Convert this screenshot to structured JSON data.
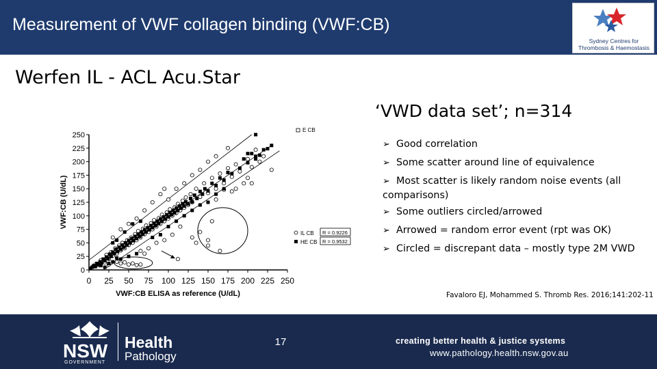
{
  "header": {
    "title": "Measurement of VWF collagen binding (VWF:CB)"
  },
  "logo": {
    "line1": "Sydney Centres for",
    "line2": "Thrombosis & Haemostasis"
  },
  "subtitle": "Werfen IL - ACL Acu.Star",
  "dataset_title": "‘VWD data set’; n=314",
  "bullets": [
    "Good correlation",
    "Some scatter around line of equivalence",
    "Most scatter is likely random noise events (all comparisons)",
    "Some outliers circled/arrowed",
    "Arrowed = random error event (rpt was OK)",
    "Circled = discrepant data – mostly type 2M VWD"
  ],
  "citation": "Favaloro EJ, Mohammed S. Thromb Res. 2016;141:202-11",
  "footer": {
    "org_word": "NSW",
    "org_sub": "GOVERNMENT",
    "health": "Health",
    "pathology": "Pathology",
    "page_number": "17",
    "tagline": "creating better health & justice systems",
    "url": "www.pathology.health.nsw.gov.au"
  },
  "colors": {
    "header": "#1f3b6e",
    "footer": "#1a2a4e",
    "ink": "#000000"
  },
  "icons": [
    "arrow-bullet-icon",
    "waratah-logo-icon",
    "star-logo-icon"
  ],
  "chart_data": {
    "type": "scatter",
    "xlabel": "VWF:CB ELISA as reference (U/dL)",
    "ylabel": "VWF:CB (U/dL)",
    "xlim": [
      0,
      250
    ],
    "ylim": [
      0,
      250
    ],
    "xticks": [
      0,
      25,
      50,
      75,
      100,
      125,
      150,
      175,
      200,
      225,
      250
    ],
    "yticks": [
      0,
      25,
      50,
      75,
      100,
      125,
      150,
      175,
      200,
      225,
      250
    ],
    "grid": false,
    "legend_top": "E CB",
    "legend_position": "right",
    "series": [
      {
        "name": "IL CB",
        "marker": "open-circle",
        "r_label": "R = 0.9226",
        "points": [
          [
            5,
            6
          ],
          [
            8,
            10
          ],
          [
            12,
            9
          ],
          [
            15,
            18
          ],
          [
            20,
            14
          ],
          [
            22,
            28
          ],
          [
            25,
            20
          ],
          [
            28,
            33
          ],
          [
            30,
            26
          ],
          [
            33,
            40
          ],
          [
            35,
            30
          ],
          [
            38,
            45
          ],
          [
            40,
            36
          ],
          [
            42,
            50
          ],
          [
            45,
            40
          ],
          [
            48,
            55
          ],
          [
            50,
            46
          ],
          [
            53,
            60
          ],
          [
            55,
            50
          ],
          [
            58,
            66
          ],
          [
            60,
            55
          ],
          [
            62,
            72
          ],
          [
            65,
            60
          ],
          [
            68,
            76
          ],
          [
            70,
            66
          ],
          [
            72,
            82
          ],
          [
            75,
            70
          ],
          [
            78,
            86
          ],
          [
            80,
            75
          ],
          [
            82,
            92
          ],
          [
            85,
            80
          ],
          [
            88,
            96
          ],
          [
            90,
            85
          ],
          [
            92,
            102
          ],
          [
            95,
            90
          ],
          [
            98,
            106
          ],
          [
            100,
            95
          ],
          [
            102,
            112
          ],
          [
            105,
            100
          ],
          [
            108,
            116
          ],
          [
            110,
            105
          ],
          [
            112,
            122
          ],
          [
            115,
            110
          ],
          [
            118,
            128
          ],
          [
            120,
            115
          ],
          [
            122,
            134
          ],
          [
            125,
            120
          ],
          [
            128,
            140
          ],
          [
            130,
            125
          ],
          [
            135,
            150
          ],
          [
            140,
            135
          ],
          [
            145,
            160
          ],
          [
            150,
            142
          ],
          [
            155,
            170
          ],
          [
            160,
            150
          ],
          [
            165,
            178
          ],
          [
            170,
            160
          ],
          [
            175,
            188
          ],
          [
            180,
            172
          ],
          [
            185,
            195
          ],
          [
            190,
            182
          ],
          [
            200,
            205
          ],
          [
            205,
            190
          ],
          [
            210,
            222
          ],
          [
            215,
            200
          ],
          [
            220,
            210
          ],
          [
            100,
            130
          ],
          [
            110,
            150
          ],
          [
            120,
            160
          ],
          [
            130,
            175
          ],
          [
            140,
            185
          ],
          [
            150,
            200
          ],
          [
            160,
            210
          ],
          [
            175,
            225
          ],
          [
            60,
            95
          ],
          [
            70,
            110
          ],
          [
            80,
            125
          ],
          [
            90,
            140
          ],
          [
            95,
            150
          ],
          [
            30,
            60
          ],
          [
            40,
            75
          ],
          [
            50,
            85
          ],
          [
            25,
            10
          ],
          [
            35,
            15
          ],
          [
            40,
            12
          ],
          [
            45,
            14
          ],
          [
            50,
            10
          ],
          [
            55,
            12
          ],
          [
            60,
            9
          ],
          [
            65,
            10
          ],
          [
            130,
            60
          ],
          [
            135,
            50
          ],
          [
            150,
            55
          ],
          [
            165,
            35
          ],
          [
            115,
            80
          ],
          [
            140,
            70
          ],
          [
            155,
            90
          ],
          [
            105,
            65
          ],
          [
            95,
            55
          ],
          [
            85,
            50
          ],
          [
            75,
            40
          ],
          [
            70,
            30
          ],
          [
            65,
            35
          ],
          [
            150,
            45
          ],
          [
            112,
            20
          ],
          [
            185,
            150
          ],
          [
            195,
            160
          ],
          [
            200,
            170
          ],
          [
            205,
            160
          ],
          [
            230,
            185
          ],
          [
            180,
            145
          ],
          [
            170,
            148
          ],
          [
            160,
            130
          ]
        ]
      },
      {
        "name": "HE CB",
        "marker": "filled-square",
        "r_label": "R = 0.9532",
        "points": [
          [
            2,
            3
          ],
          [
            4,
            5
          ],
          [
            6,
            8
          ],
          [
            8,
            6
          ],
          [
            10,
            12
          ],
          [
            12,
            10
          ],
          [
            14,
            15
          ],
          [
            16,
            13
          ],
          [
            18,
            20
          ],
          [
            20,
            17
          ],
          [
            22,
            24
          ],
          [
            24,
            21
          ],
          [
            26,
            29
          ],
          [
            28,
            25
          ],
          [
            30,
            33
          ],
          [
            32,
            30
          ],
          [
            34,
            38
          ],
          [
            36,
            34
          ],
          [
            38,
            42
          ],
          [
            40,
            38
          ],
          [
            42,
            46
          ],
          [
            44,
            42
          ],
          [
            46,
            50
          ],
          [
            48,
            46
          ],
          [
            50,
            54
          ],
          [
            52,
            50
          ],
          [
            54,
            58
          ],
          [
            56,
            54
          ],
          [
            58,
            62
          ],
          [
            60,
            58
          ],
          [
            62,
            66
          ],
          [
            64,
            62
          ],
          [
            66,
            70
          ],
          [
            68,
            66
          ],
          [
            70,
            74
          ],
          [
            72,
            70
          ],
          [
            74,
            78
          ],
          [
            76,
            74
          ],
          [
            78,
            82
          ],
          [
            80,
            78
          ],
          [
            82,
            86
          ],
          [
            84,
            82
          ],
          [
            86,
            90
          ],
          [
            88,
            86
          ],
          [
            90,
            94
          ],
          [
            92,
            90
          ],
          [
            94,
            98
          ],
          [
            96,
            94
          ],
          [
            98,
            102
          ],
          [
            100,
            98
          ],
          [
            102,
            106
          ],
          [
            104,
            102
          ],
          [
            106,
            110
          ],
          [
            108,
            106
          ],
          [
            110,
            114
          ],
          [
            112,
            110
          ],
          [
            114,
            118
          ],
          [
            116,
            114
          ],
          [
            118,
            122
          ],
          [
            120,
            118
          ],
          [
            122,
            126
          ],
          [
            125,
            122
          ],
          [
            128,
            132
          ],
          [
            130,
            126
          ],
          [
            133,
            138
          ],
          [
            136,
            132
          ],
          [
            140,
            145
          ],
          [
            143,
            140
          ],
          [
            146,
            150
          ],
          [
            150,
            146
          ],
          [
            155,
            160
          ],
          [
            160,
            156
          ],
          [
            165,
            170
          ],
          [
            170,
            166
          ],
          [
            175,
            180
          ],
          [
            180,
            178
          ],
          [
            190,
            188
          ],
          [
            200,
            198
          ],
          [
            210,
            210
          ],
          [
            215,
            212
          ],
          [
            220,
            222
          ],
          [
            225,
            224
          ],
          [
            230,
            230
          ],
          [
            210,
            205
          ],
          [
            200,
            215
          ],
          [
            195,
            205
          ],
          [
            45,
            70
          ],
          [
            55,
            85
          ],
          [
            65,
            90
          ],
          [
            35,
            55
          ],
          [
            30,
            50
          ],
          [
            40,
            20
          ],
          [
            30,
            15
          ],
          [
            50,
            25
          ],
          [
            60,
            30
          ],
          [
            80,
            60
          ],
          [
            90,
            65
          ],
          [
            100,
            80
          ],
          [
            110,
            90
          ],
          [
            120,
            100
          ],
          [
            130,
            110
          ],
          [
            140,
            120
          ],
          [
            150,
            125
          ],
          [
            160,
            140
          ],
          [
            170,
            150
          ],
          [
            205,
            215
          ],
          [
            210,
            250
          ],
          [
            35,
            22
          ],
          [
            25,
            12
          ],
          [
            15,
            8
          ],
          [
            20,
            5
          ]
        ]
      }
    ],
    "equivalence_lines": "line of equivalence with upper and lower limits",
    "annotations": [
      {
        "type": "ellipse",
        "meaning": "circled outliers",
        "x_range": [
          137,
          200
        ],
        "y_range": [
          30,
          115
        ]
      },
      {
        "type": "ellipse",
        "meaning": "circled outliers",
        "x_range": [
          32,
          80
        ],
        "y_range": [
          2,
          24
        ]
      },
      {
        "type": "arrow",
        "meaning": "arrowed outlier",
        "at": [
          112,
          20
        ]
      }
    ]
  }
}
